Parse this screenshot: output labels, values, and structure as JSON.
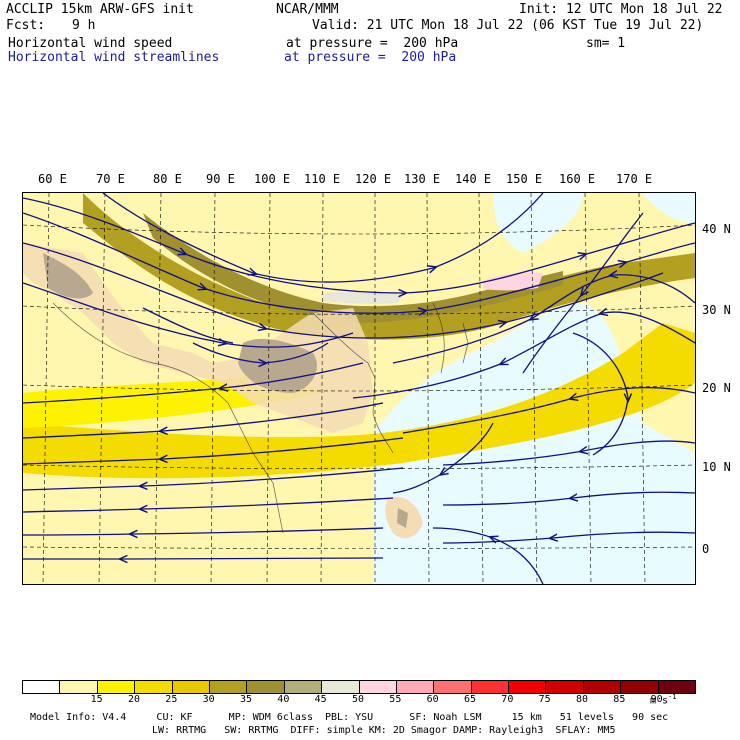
{
  "header": {
    "model_title": "ACCLIP 15km ARW-GFS init",
    "center": "NCAR/MMM",
    "init": "Init: 12 UTC Mon 18 Jul 22",
    "fcst_label": "Fcst:",
    "fcst_value": "9 h",
    "valid": "Valid: 21 UTC Mon 18 Jul 22 (06 KST Tue 19 Jul 22)",
    "field1_name": "Horizontal wind speed",
    "field1_level": "at pressure =  200 hPa",
    "field1_smooth": "sm= 1",
    "field2_name": "Horizontal wind streamlines",
    "field2_level": "at pressure =  200 hPa"
  },
  "map": {
    "lon_labels": [
      "60 E",
      "70 E",
      "80 E",
      "90 E",
      "100 E",
      "110 E",
      "120 E",
      "130 E",
      "140 E",
      "150 E",
      "160 E",
      "170 E"
    ],
    "lat_labels": [
      "40 N",
      "30 N",
      "20 N",
      "10 N",
      "0"
    ],
    "colors": {
      "streamline": "#101080",
      "land_light": "#f4dcb4",
      "terrain": "#b8a890",
      "ocean_calm": "#e8fbff",
      "grid": "#000000"
    }
  },
  "colorbar": {
    "ticks": [
      "15",
      "20",
      "25",
      "30",
      "35",
      "40",
      "45",
      "50",
      "55",
      "60",
      "65",
      "70",
      "75",
      "80",
      "85",
      "90"
    ],
    "unit": "m s",
    "unit_exp": "-1",
    "colors": [
      "#ffffff",
      "#fff6b0",
      "#fff200",
      "#f5dc00",
      "#e8c800",
      "#b4a020",
      "#a09030",
      "#b0b078",
      "#e8e8d8",
      "#ffd6e0",
      "#ffaab4",
      "#ff7070",
      "#ff3030",
      "#f00000",
      "#d00000",
      "#b00000",
      "#900000",
      "#6e0010"
    ]
  },
  "footer": {
    "line1": "Model Info: V4.4     CU: KF      MP: WDM 6class  PBL: YSU      SF: Noah LSM     15 km   51 levels   90 sec",
    "line2": "LW: RRTMG   SW: RRTMG  DIFF: simple KM: 2D Smagor DAMP: Rayleigh3  SFLAY: MM5"
  }
}
